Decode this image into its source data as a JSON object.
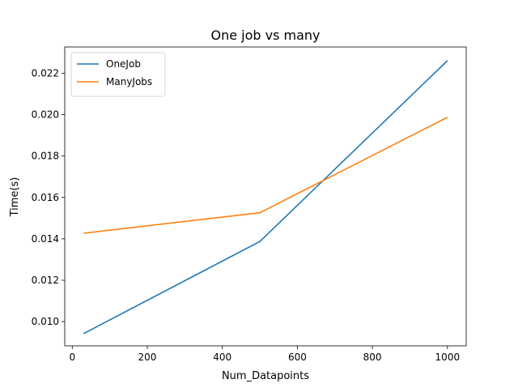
{
  "chart_data": {
    "type": "line",
    "title": "One job vs many",
    "xlabel": "Num_Datapoints",
    "ylabel": "Time(s)",
    "xlim": [
      -20,
      1050
    ],
    "ylim": [
      0.00883,
      0.02327
    ],
    "xticks": [
      0,
      200,
      400,
      600,
      800,
      1000
    ],
    "yticks": [
      0.01,
      0.012,
      0.014,
      0.016,
      0.018,
      0.02,
      0.022
    ],
    "xtick_labels": [
      "0",
      "200",
      "400",
      "600",
      "800",
      "1000"
    ],
    "ytick_labels": [
      "0.010",
      "0.012",
      "0.014",
      "0.016",
      "0.018",
      "0.020",
      "0.022"
    ],
    "x": [
      30,
      500,
      1000
    ],
    "series": [
      {
        "name": "OneJob",
        "values": [
          0.00942,
          0.01387,
          0.02261
        ],
        "color": "#1f77b4"
      },
      {
        "name": "ManyJobs",
        "values": [
          0.01427,
          0.01526,
          0.01987
        ],
        "color": "#ff7f0e"
      }
    ],
    "legend": "top-left",
    "grid": false
  }
}
